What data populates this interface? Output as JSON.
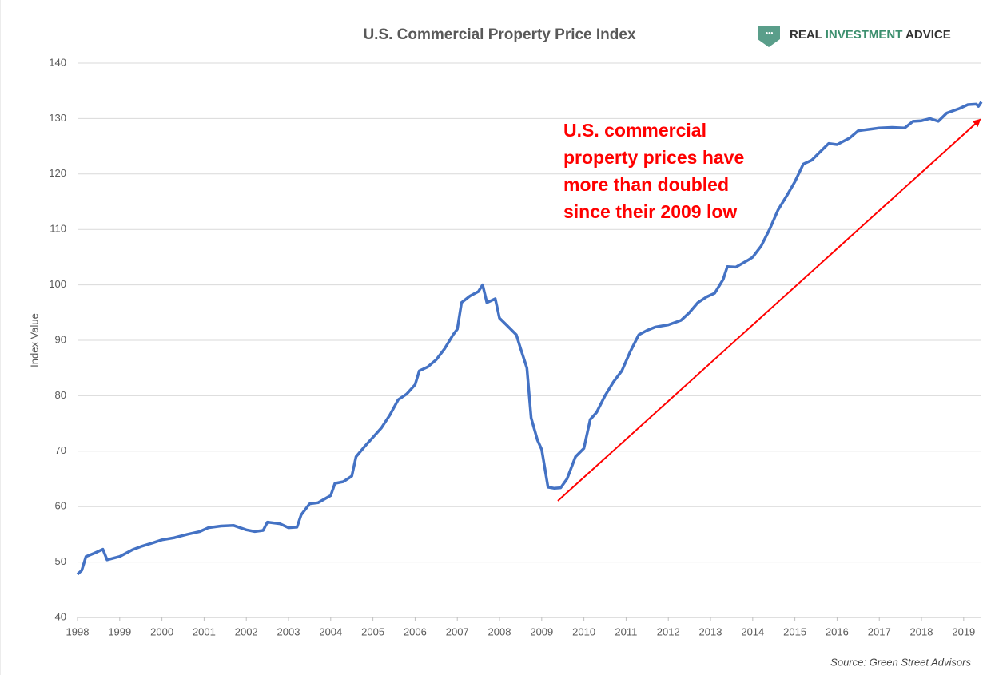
{
  "chart_data": {
    "type": "line",
    "title": "U.S. Commercial Property Price Index",
    "logo": [
      "REAL",
      "INVESTMENT",
      "ADVICE"
    ],
    "y_label": "Index Value",
    "annotation": [
      "U.S. commercial",
      "property prices have",
      "more than doubled",
      "since their 2009 low"
    ],
    "source": "Source: Green Street Advisors",
    "xlim": [
      1998,
      2019.42
    ],
    "xticks": [
      1998,
      1999,
      2000,
      2001,
      2002,
      2003,
      2004,
      2005,
      2006,
      2007,
      2008,
      2009,
      2010,
      2011,
      2012,
      2013,
      2014,
      2015,
      2016,
      2017,
      2018,
      2019
    ],
    "ylim": [
      40,
      140
    ],
    "yticks": [
      40,
      50,
      60,
      70,
      80,
      90,
      100,
      110,
      120,
      130,
      140
    ],
    "grid": true,
    "series": [
      {
        "color": "#4472c4",
        "x": [
          1998.0,
          1998.1,
          1998.2,
          1998.4,
          1998.6,
          1998.7,
          1999.0,
          1999.3,
          1999.5,
          1999.8,
          2000.0,
          2000.3,
          2000.6,
          2000.9,
          2001.1,
          2001.4,
          2001.7,
          2002.0,
          2002.2,
          2002.4,
          2002.5,
          2002.8,
          2003.0,
          2003.2,
          2003.3,
          2003.5,
          2003.7,
          2004.0,
          2004.1,
          2004.3,
          2004.5,
          2004.6,
          2004.8,
          2005.0,
          2005.2,
          2005.4,
          2005.6,
          2005.8,
          2006.0,
          2006.1,
          2006.3,
          2006.5,
          2006.7,
          2006.9,
          2007.0,
          2007.1,
          2007.3,
          2007.5,
          2007.6,
          2007.7,
          2007.9,
          2008.0,
          2008.2,
          2008.4,
          2008.5,
          2008.65,
          2008.75,
          2008.9,
          2009.0,
          2009.15,
          2009.3,
          2009.45,
          2009.6,
          2009.8,
          2010.0,
          2010.15,
          2010.3,
          2010.5,
          2010.7,
          2010.9,
          2011.1,
          2011.3,
          2011.5,
          2011.7,
          2012.0,
          2012.3,
          2012.5,
          2012.7,
          2012.9,
          2013.1,
          2013.3,
          2013.4,
          2013.6,
          2013.9,
          2014.0,
          2014.2,
          2014.4,
          2014.6,
          2014.8,
          2015.0,
          2015.2,
          2015.4,
          2015.6,
          2015.8,
          2016.0,
          2016.3,
          2016.5,
          2016.8,
          2017.0,
          2017.3,
          2017.6,
          2017.8,
          2018.0,
          2018.2,
          2018.4,
          2018.6,
          2018.9,
          2019.1,
          2019.3,
          2019.35,
          2019.42
        ],
        "values": [
          47.8,
          48.5,
          51,
          51.6,
          52.3,
          50.4,
          51,
          52.2,
          52.8,
          53.5,
          54,
          54.4,
          55,
          55.5,
          56.2,
          56.5,
          56.6,
          55.8,
          55.5,
          55.7,
          57.2,
          56.9,
          56.2,
          56.3,
          58.5,
          60.5,
          60.7,
          62,
          64.2,
          64.5,
          65.5,
          69,
          70.8,
          72.5,
          74.2,
          76.5,
          79.3,
          80.3,
          82,
          84.5,
          85.2,
          86.5,
          88.5,
          91,
          92,
          96.8,
          98,
          98.8,
          100,
          96.8,
          97.5,
          94,
          92.5,
          91,
          88.5,
          85,
          76,
          72,
          70.3,
          63.5,
          63.3,
          63.4,
          65,
          69,
          70.5,
          75.7,
          77,
          80,
          82.5,
          84.5,
          88,
          91,
          91.8,
          92.4,
          92.8,
          93.6,
          95,
          96.8,
          97.8,
          98.5,
          101,
          103.3,
          103.2,
          104.5,
          105,
          107,
          110,
          113.5,
          116,
          118.6,
          121.8,
          122.5,
          124,
          125.5,
          125.3,
          126.5,
          127.8,
          128.1,
          128.3,
          128.4,
          128.3,
          129.5,
          129.6,
          130,
          129.5,
          131,
          131.8,
          132.5,
          132.6,
          132.2,
          133
        ]
      }
    ]
  }
}
